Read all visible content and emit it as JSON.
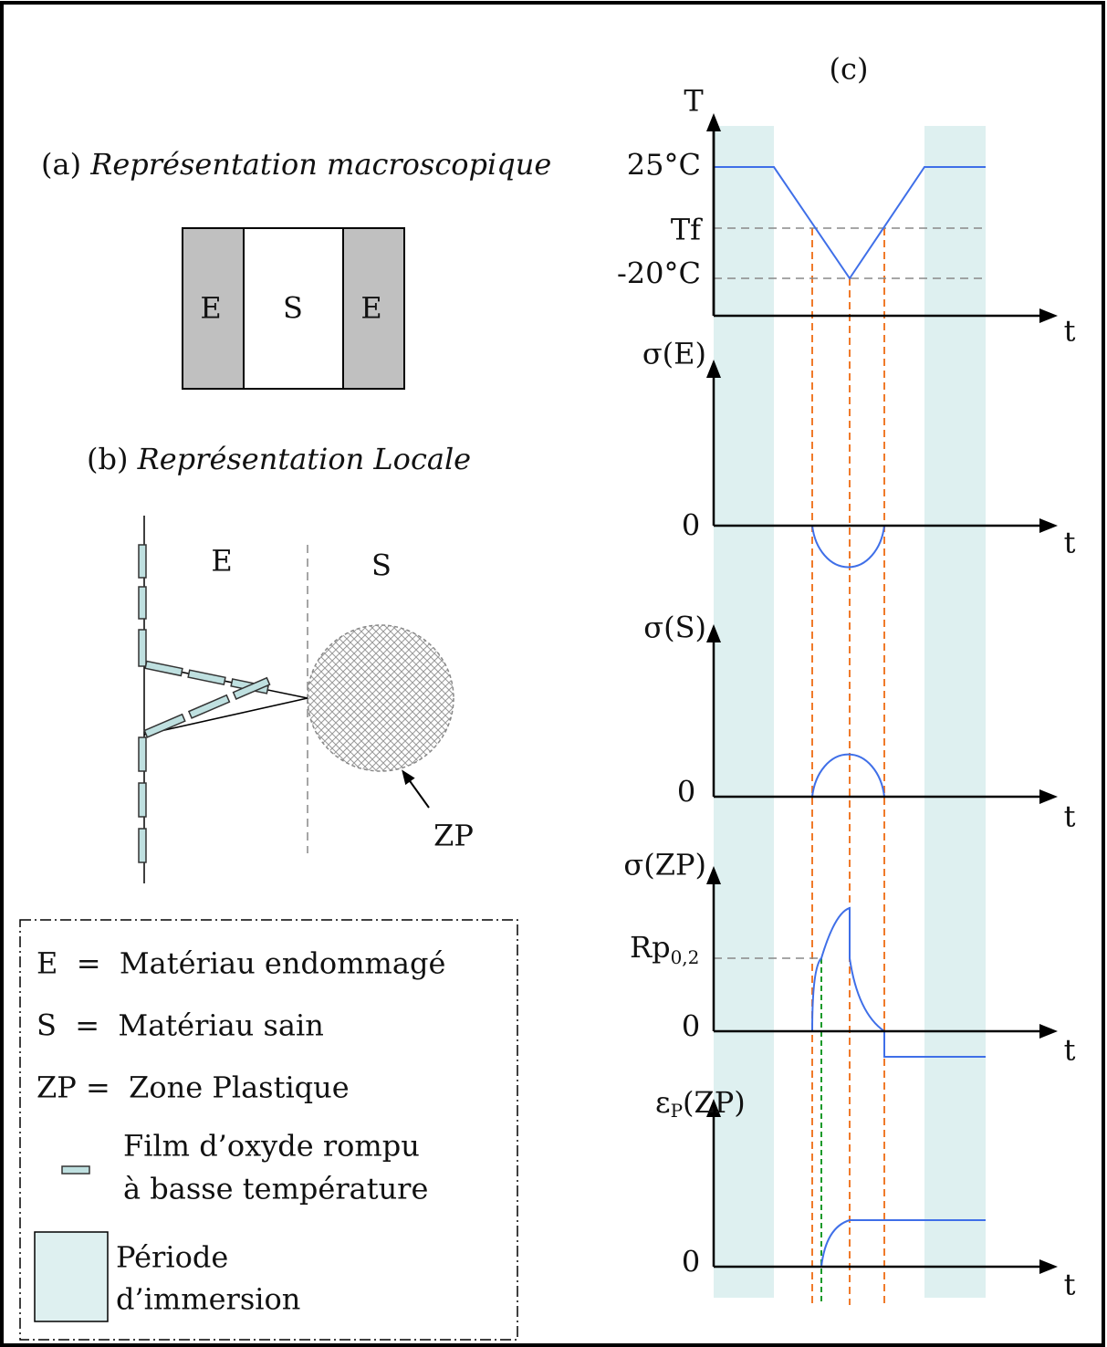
{
  "panel_a": {
    "label": "(a)",
    "title": "Représentation macroscopique",
    "blocks": [
      "E",
      "S",
      "E"
    ]
  },
  "panel_b": {
    "label": "(b)",
    "title": "Représentation Locale",
    "regions": [
      "E",
      "S"
    ],
    "zone": "ZP"
  },
  "panel_c": {
    "label": "(c)",
    "plots": [
      {
        "y_label": [
          "T"
        ],
        "x_label": "t",
        "levels": [
          "25°C",
          "Tf",
          "-20°C"
        ]
      },
      {
        "y_label": [
          "σ(E)"
        ],
        "x_label": "t",
        "levels": [
          "0"
        ]
      },
      {
        "y_label": [
          "σ(S)"
        ],
        "x_label": "t",
        "levels": [
          "0"
        ]
      },
      {
        "y_label": [
          "σ(ZP)"
        ],
        "x_label": "t",
        "levels": [
          [
            "Rp",
            "0,2"
          ],
          "0"
        ]
      },
      {
        "y_label": [
          "ε",
          "P",
          "(ZP)"
        ],
        "x_label": "t",
        "levels": [
          "0"
        ]
      }
    ]
  },
  "legend": [
    "E  =  Matériau endommagé",
    "S  =  Matériau sain",
    "ZP =  Zone Plastique",
    [
      "Film d’oxyde rompu",
      "à basse température"
    ],
    [
      "Période",
      "d’immersion"
    ]
  ]
}
